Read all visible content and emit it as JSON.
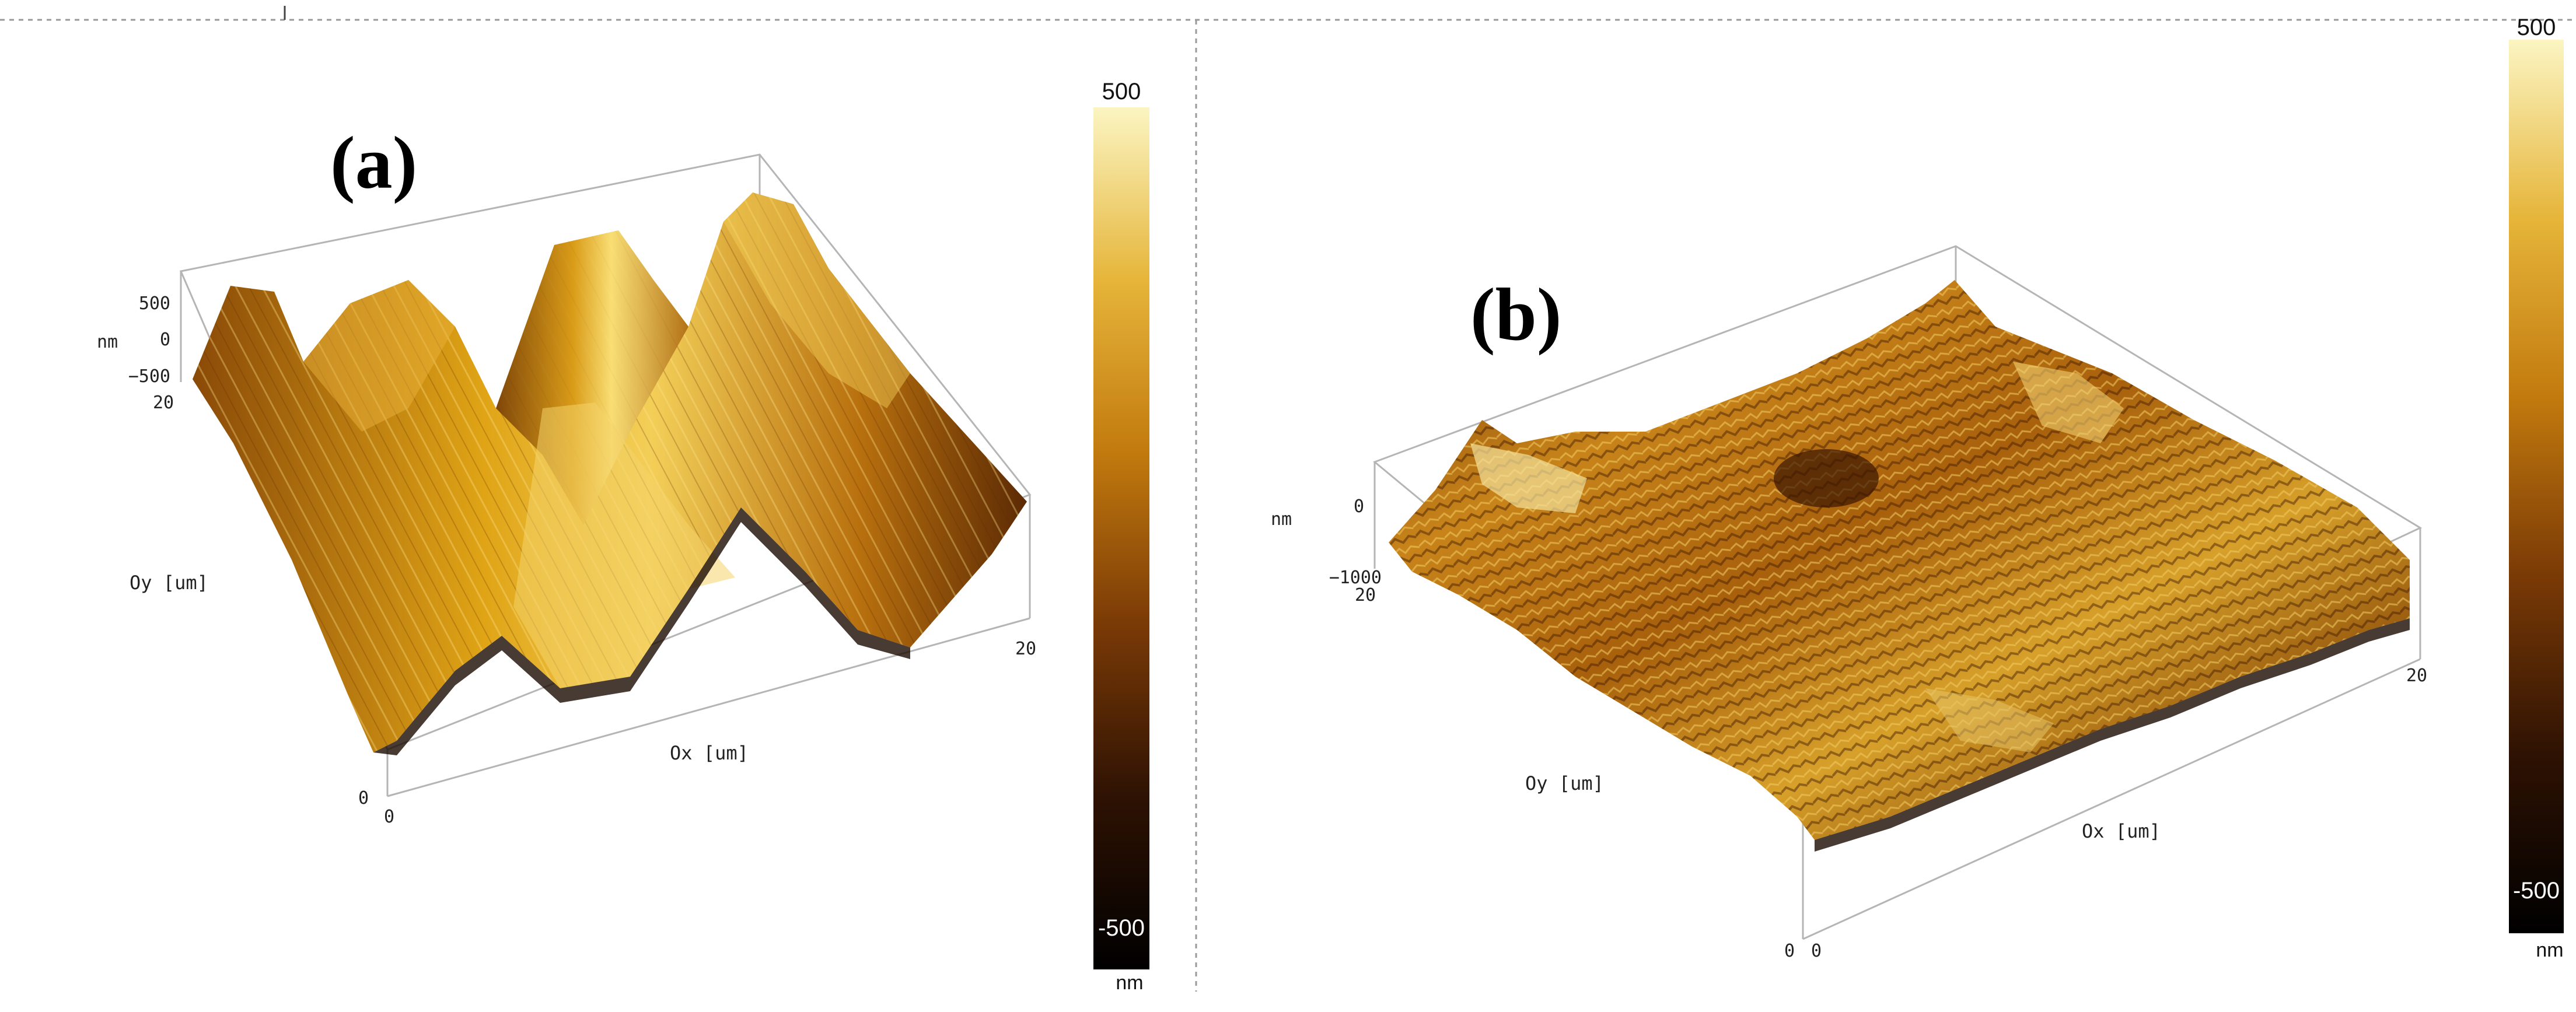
{
  "panel_a": {
    "label": "(a)",
    "z_ticks": [
      "500",
      "0",
      "−500"
    ],
    "z_unit": "nm",
    "y_axis_label": "Oy [um]",
    "x_axis_label": "Ox [um]",
    "y_max": "20",
    "y_min": "0",
    "x_min": "0",
    "x_max": "20",
    "colorbar": {
      "max": "500",
      "min": "-500",
      "unit": "nm"
    }
  },
  "panel_b": {
    "label": "(b)",
    "z_ticks": [
      "0",
      "−1000"
    ],
    "z_unit": "nm",
    "y_axis_label": "Oy [um]",
    "x_axis_label": "Ox [um]",
    "y_max": "20",
    "y_min": "0",
    "x_min": "0",
    "x_max": "20",
    "colorbar": {
      "max": "500",
      "min": "-500",
      "unit": "nm"
    }
  },
  "colors": {
    "afm_dark": "#1a0a00",
    "afm_mid": "#8a4a08",
    "afm_bright": "#e0a416",
    "afm_light": "#fbf2b0"
  }
}
